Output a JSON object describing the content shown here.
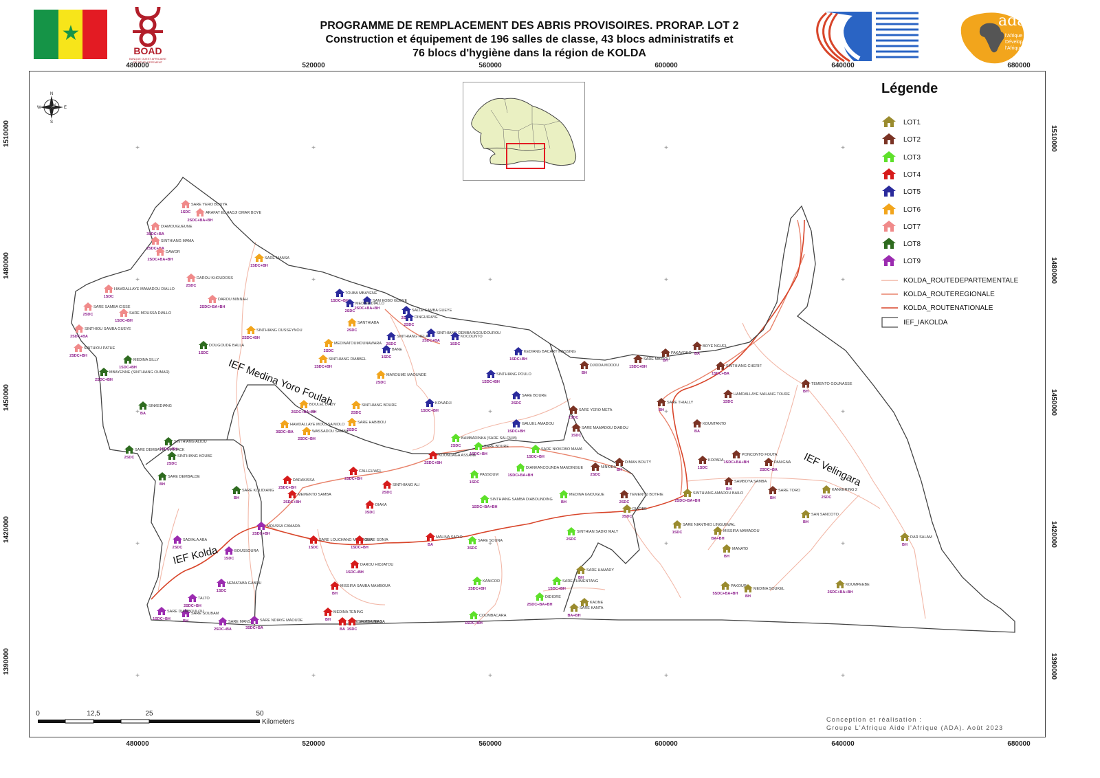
{
  "header": {
    "flag_name": "senegal-flag",
    "boad_logo_text": "BOAD",
    "boad_logo_subtext": "BANQUE OUEST AFRICAINE DE DÉVELOPPEMENT",
    "title_line1": "PROGRAMME DE REMPLACEMENT DES ABRIS PROVISOIRES. PRORAP. LOT 2",
    "title_line2": "Construction et équipement de 196 salles de classe, 43 blocs administratifs et",
    "title_line3": "76 blocs d'hygiène dans la région de KOLDA",
    "ada_logo_text": "ada",
    "ada_tagline": "l'Afrique Développe l'Afrique"
  },
  "axes": {
    "x_ticks": [
      "480000",
      "520000",
      "560000",
      "600000",
      "640000",
      "680000"
    ],
    "y_ticks": [
      "1510000",
      "1480000",
      "1450000",
      "1420000",
      "1390000"
    ]
  },
  "ief_labels": [
    "IEF Medina Yoro Foulah",
    "IEF Kolda",
    "IEF Velingara"
  ],
  "legend": {
    "title": "Légende",
    "lots": [
      {
        "label": "LOT1",
        "color": "#9a8b2e"
      },
      {
        "label": "LOT2",
        "color": "#7a3324"
      },
      {
        "label": "LOT3",
        "color": "#5ee02a"
      },
      {
        "label": "LOT4",
        "color": "#d61b1b"
      },
      {
        "label": "LOT5",
        "color": "#2a2a9c"
      },
      {
        "label": "LOT6",
        "color": "#f2a51c"
      },
      {
        "label": "LOT7",
        "color": "#f08a8a"
      },
      {
        "label": "LOT8",
        "color": "#2e6b1f"
      },
      {
        "label": "LOT9",
        "color": "#9b2bb0"
      }
    ],
    "roads": [
      {
        "label": "KOLDA_ROUTEDEPARTEMENTALE",
        "color": "#f2b8a8"
      },
      {
        "label": "KOLDA_ROUTEREGIONALE",
        "color": "#e8826a"
      },
      {
        "label": "KOLDA_ROUTENATIONALE",
        "color": "#d8452a"
      }
    ],
    "boundary_label": "IEF_IAKOLDA"
  },
  "scale_bar": {
    "ticks": [
      "0",
      "12,5",
      "25",
      "50"
    ],
    "unit": "Kilometers"
  },
  "credit": {
    "line1": "Conception et réalisation :",
    "line2": "Groupe L'Afrique Aide l'Afrique (ADA). Août 2023"
  },
  "sites": [
    {
      "name": "SARE YERO BOUYA",
      "info": "1SDC",
      "lot": 7
    },
    {
      "name": "ARAFAT EL HADJI OMAR BOYE",
      "info": "2SDC+BA+BH",
      "lot": 7
    },
    {
      "name": "DIAMOUGUEUNE",
      "info": "3SDC+BA",
      "lot": 7
    },
    {
      "name": "SINTHIANG MAMA",
      "info": "2SDC+BA",
      "lot": 7
    },
    {
      "name": "DAWOR",
      "info": "2SDC+BA+BH",
      "lot": 7
    },
    {
      "name": "DAROU KHOUDOSS",
      "info": "2SDC",
      "lot": 7
    },
    {
      "name": "HAMDALLAYE MAMADOU DIALLO",
      "info": "1SDC",
      "lot": 7
    },
    {
      "name": "DAROU MINNAH",
      "info": "2SDC+BA+BH",
      "lot": 7
    },
    {
      "name": "SARE SAMBA CISSE",
      "info": "2SDC",
      "lot": 7
    },
    {
      "name": "SARE MOUSSA DIALLO",
      "info": "1SDC+BH",
      "lot": 7
    },
    {
      "name": "SINTHIOU SAMBA GUEYE",
      "info": "2SDC+BA",
      "lot": 7
    },
    {
      "name": "SINTHIOU PATHE",
      "info": "2SDC+BH",
      "lot": 7
    },
    {
      "name": "SARE MANSA",
      "info": "1SDC+BH",
      "lot": 6
    },
    {
      "name": "SINTHIANG OUSSEYNOU",
      "info": "2SDC+BH",
      "lot": 6
    },
    {
      "name": "SANTHIABA",
      "info": "2SDC",
      "lot": 6
    },
    {
      "name": "MEDINATOUMOUNAWARA",
      "info": "2SDC",
      "lot": 6
    },
    {
      "name": "SINTHIANG DIABBEL",
      "info": "1SDC+BH",
      "lot": 6
    },
    {
      "name": "MAROUME MAOUNDE",
      "info": "2SDC",
      "lot": 6
    },
    {
      "name": "BOULEL DADY",
      "info": "2SDC+BA+BH",
      "lot": 6
    },
    {
      "name": "SINTHIANG BOURE",
      "info": "2SDC",
      "lot": 6
    },
    {
      "name": "HAMDALLAYE MOUSSA MOLO",
      "info": "3SDC+BA",
      "lot": 6
    },
    {
      "name": "SARE HABIBOU",
      "info": "2SDC",
      "lot": 6
    },
    {
      "name": "WASSADOU SAMBA",
      "info": "2SDC+BH",
      "lot": 6
    },
    {
      "name": "TOUBA MBAYENE",
      "info": "1SDC+BH",
      "lot": 5
    },
    {
      "name": "SAM KOBO GUEYE",
      "info": "2SDC+BA+BH",
      "lot": 5
    },
    {
      "name": "MEDINA DIALLO",
      "info": "2SDC",
      "lot": 5
    },
    {
      "name": "SALLE SAMBA GUEYE",
      "info": "2SDC",
      "lot": 5
    },
    {
      "name": "DINGUIRAYE",
      "info": "2SDC",
      "lot": 5
    },
    {
      "name": "SINTHIANG HELA",
      "info": "2SDC",
      "lot": 5
    },
    {
      "name": "BANE",
      "info": "1SDC",
      "lot": 5
    },
    {
      "name": "SINTHIANG DEMBA NGOUDOUROU",
      "info": "2SDC+BA",
      "lot": 5
    },
    {
      "name": "KOCOUNTO",
      "info": "1SDC",
      "lot": 5
    },
    {
      "name": "KEDIANG BACARY MASSING",
      "info": "1SDC+BH",
      "lot": 5
    },
    {
      "name": "SINTHIANG POULO",
      "info": "1SDC+BH",
      "lot": 5
    },
    {
      "name": "SARE BOURE",
      "info": "2SDC",
      "lot": 5
    },
    {
      "name": "KONADJI",
      "info": "1SDC+BH",
      "lot": 5
    },
    {
      "name": "GALUEL AMADOU",
      "info": "1SDC+BH",
      "lot": 5
    },
    {
      "name": "DOUGOUDE BALLA",
      "info": "1SDC",
      "lot": 8
    },
    {
      "name": "MEDINA SILLY",
      "info": "1SDC+BH",
      "lot": 8
    },
    {
      "name": "MBAYENNE (SINTHIANG OUMAR)",
      "info": "2SDC+BH",
      "lot": 8
    },
    {
      "name": "SINKEDIANG",
      "info": "BA",
      "lot": 8
    },
    {
      "name": "SARE DEMBAYEL MANIACK",
      "info": "2SDC",
      "lot": 8
    },
    {
      "name": "SINTHIANG ALIOU",
      "info": "1SDC+BH",
      "lot": 8
    },
    {
      "name": "SINTHIANG KOUBE",
      "info": "2SDC",
      "lot": 8
    },
    {
      "name": "SARE DEMBALDE",
      "info": "BH",
      "lot": 8
    },
    {
      "name": "SARE KOLIDIANG",
      "info": "BH",
      "lot": 8
    },
    {
      "name": "BAMBADINKA (SARE SALOUM)",
      "info": "2SDC",
      "lot": 3
    },
    {
      "name": "SARE BOURE",
      "info": "1SDC+BH",
      "lot": 3
    },
    {
      "name": "SARE NIOKOBO MAMA",
      "info": "1SDC+BH",
      "lot": 3
    },
    {
      "name": "DIANKANCOUNDA MANDINGUE",
      "info": "1SDC+BA+BH",
      "lot": 3
    },
    {
      "name": "PASSOUM",
      "info": "1SDC",
      "lot": 3
    },
    {
      "name": "SINTHIANG SAMBA DIABOUNDING",
      "info": "1SDC+BA+BH",
      "lot": 3
    },
    {
      "name": "MEDINA GNOUGUE",
      "info": "BH",
      "lot": 3
    },
    {
      "name": "SINTHIAN SADIO MALY",
      "info": "2SDC",
      "lot": 3
    },
    {
      "name": "SARE SOUNA",
      "info": "3SDC",
      "lot": 3
    },
    {
      "name": "KANICOR",
      "info": "2SDC+BH",
      "lot": 3
    },
    {
      "name": "SARE THIMENTANG",
      "info": "1SDC+BH",
      "lot": 3
    },
    {
      "name": "DIDIORE",
      "info": "2SDC+BA+BH",
      "lot": 3
    },
    {
      "name": "COUMBACARA",
      "info": "1SDC+BH",
      "lot": 3
    },
    {
      "name": "CALLEUWEL",
      "info": "2SDC+BH",
      "lot": 4
    },
    {
      "name": "KOUNDAGA ASSANE",
      "info": "2SDC+BH",
      "lot": 4
    },
    {
      "name": "SINTHIANG ALI",
      "info": "2SDC",
      "lot": 4
    },
    {
      "name": "DIAKA",
      "info": "3SDC",
      "lot": 4
    },
    {
      "name": "DARAKISSA",
      "info": "2SDC+BH",
      "lot": 4
    },
    {
      "name": "MEMENTO SAMBA",
      "info": "2SDC+BH",
      "lot": 4
    },
    {
      "name": "SARE LOUCHANG MAMBOUA",
      "info": "1SDC",
      "lot": 4
    },
    {
      "name": "SARE SONIA",
      "info": "1SDC+BH",
      "lot": 4
    },
    {
      "name": "DAROU HIDJATOU",
      "info": "1SDC+BH",
      "lot": 4
    },
    {
      "name": "MISSIRA SAMBA MAMBOUA",
      "info": "BH",
      "lot": 4
    },
    {
      "name": "MEDINA TENING",
      "info": "BH",
      "lot": 4
    },
    {
      "name": "SARE SAMBA NIANA",
      "info": "BA",
      "lot": 4
    },
    {
      "name": "SALIKEGNE 2",
      "info": "1SDC",
      "lot": 4
    },
    {
      "name": "MALINA SADIO",
      "info": "BA",
      "lot": 4
    },
    {
      "name": "SADIALA ABA",
      "info": "2SDC",
      "lot": 9
    },
    {
      "name": "MOUSSA CAMARA",
      "info": "2SDC+BH",
      "lot": 9
    },
    {
      "name": "BOUSSOURA",
      "info": "1SDC",
      "lot": 9
    },
    {
      "name": "NEMATABA GABOU",
      "info": "1SDC",
      "lot": 9
    },
    {
      "name": "TALTO",
      "info": "2SDC+BH",
      "lot": 9
    },
    {
      "name": "SARE SOUBAM",
      "info": "BH",
      "lot": 9
    },
    {
      "name": "SARE DIAMBOULOU",
      "info": "1SDC+BH",
      "lot": 9
    },
    {
      "name": "SARE MANSA",
      "info": "2SDC+BA",
      "lot": 9
    },
    {
      "name": "SARE NDIAYE MAOUDE",
      "info": "3SDC+BA",
      "lot": 9
    },
    {
      "name": "DJIDDA MODOU",
      "info": "BH",
      "lot": 2
    },
    {
      "name": "SARE MBIROU",
      "info": "1SDC+BH",
      "lot": 2
    },
    {
      "name": "PAKAYOKO",
      "info": "BH",
      "lot": 2
    },
    {
      "name": "BOYE NGUEL",
      "info": "BA",
      "lot": 2
    },
    {
      "name": "SINTHIANG CHERIF",
      "info": "1SDC+BA",
      "lot": 2
    },
    {
      "name": "TEMENTO GOUNASSE",
      "info": "BH",
      "lot": 2
    },
    {
      "name": "HAMDALLAYE MALANG TOURE",
      "info": "1SDC",
      "lot": 2
    },
    {
      "name": "SARE YERO META",
      "info": "1SDC",
      "lot": 2
    },
    {
      "name": "SARE MAMADOU DIABOU",
      "info": "1SDC",
      "lot": 2
    },
    {
      "name": "SARE THIALLY",
      "info": "BH",
      "lot": 2
    },
    {
      "name": "KOUNTANTO",
      "info": "BA",
      "lot": 2
    },
    {
      "name": "KOPARA",
      "info": "1SDC",
      "lot": 2
    },
    {
      "name": "PONCONTO FOUTA",
      "info": "1SDC+BA+BH",
      "lot": 2
    },
    {
      "name": "PANIGNA",
      "info": "2SDC+BA",
      "lot": 2
    },
    {
      "name": "NINKIDA",
      "info": "2SDC",
      "lot": 2
    },
    {
      "name": "DIMAN BOUTY",
      "info": "BH",
      "lot": 2
    },
    {
      "name": "TEMENTO BOTHIE",
      "info": "2SDC",
      "lot": 2
    },
    {
      "name": "SARE TORO",
      "info": "BH",
      "lot": 2
    },
    {
      "name": "SAMBOYA SAMBA",
      "info": "BH",
      "lot": 2
    },
    {
      "name": "KANKERING 2",
      "info": "2SDC",
      "lot": 1
    },
    {
      "name": "SAN SANCOTO",
      "info": "BH",
      "lot": 1
    },
    {
      "name": "DAR SALAM",
      "info": "BH",
      "lot": 1
    },
    {
      "name": "MISSIRA MAMADOU",
      "info": "BA+BH",
      "lot": 1
    },
    {
      "name": "MANATO",
      "info": "BH",
      "lot": 1
    },
    {
      "name": "PAKOUR",
      "info": "5SDC+BA+BH",
      "lot": 1
    },
    {
      "name": "MEDINA SOUKEL",
      "info": "BH",
      "lot": 1
    },
    {
      "name": "KOUMPEEBE",
      "info": "2SDC+BA+BH",
      "lot": 1
    },
    {
      "name": "SARE HAMADY",
      "info": "BH",
      "lot": 1
    },
    {
      "name": "SARE KANTA",
      "info": "BA+BH",
      "lot": 1
    },
    {
      "name": "KAONE",
      "info": "",
      "lot": 1
    },
    {
      "name": "SARE NIANTHIO LINGUEWAL",
      "info": "1SDC",
      "lot": 1
    },
    {
      "name": "SINTHIANG AMADOU BAILO",
      "info": "2SDC+BA+BH",
      "lot": 1
    },
    {
      "name": "DIAOBE",
      "info": "3SDC",
      "lot": 1
    }
  ]
}
